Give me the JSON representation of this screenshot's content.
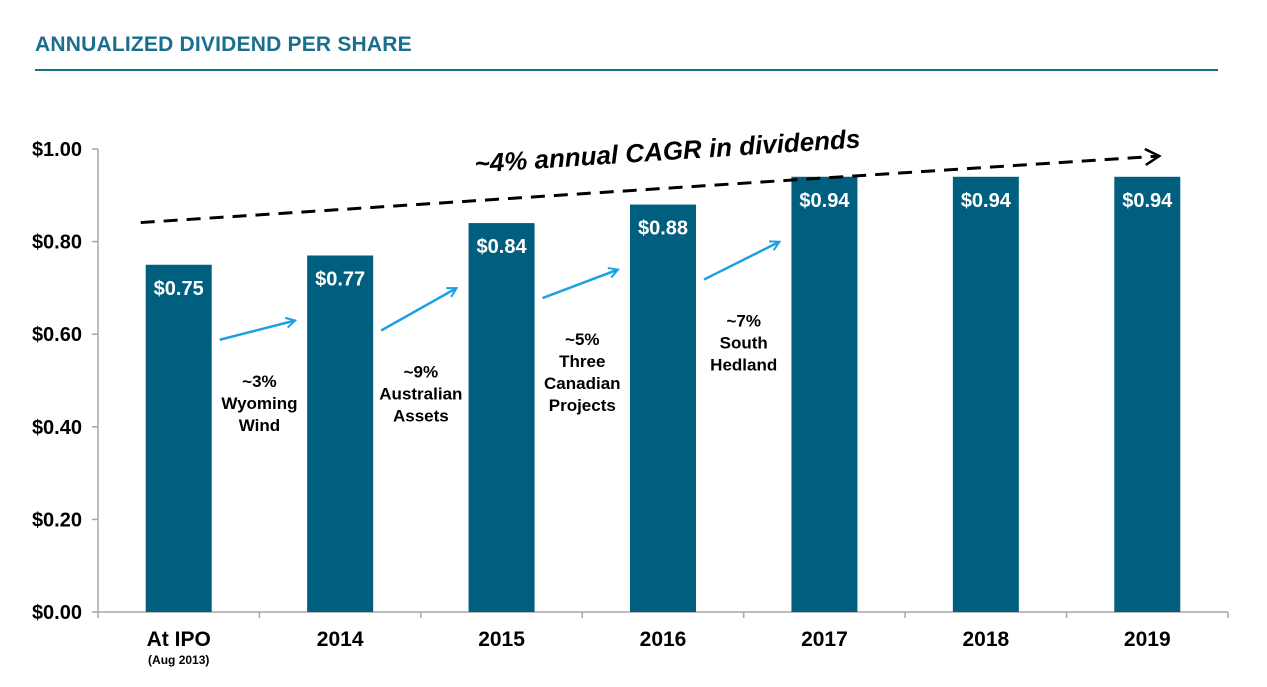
{
  "colors": {
    "title": "#1a6f8e",
    "rule": "#1a6f8e",
    "bar": "#005f7f",
    "axis": "#a6a6a6",
    "growth_arrow": "#1ba1e2",
    "trend_arrow": "#000000"
  },
  "chart_data": {
    "type": "bar",
    "title": "ANNUALIZED DIVIDEND PER SHARE",
    "xlabel": "",
    "ylabel": "",
    "ylim": [
      0,
      1.0
    ],
    "yticks": [
      "$0.00",
      "$0.20",
      "$0.40",
      "$0.60",
      "$0.80",
      "$1.00"
    ],
    "grid": false,
    "legend": "none",
    "categories": [
      {
        "label": "At IPO",
        "sublabel": "(Aug 2013)"
      },
      {
        "label": "2014",
        "sublabel": ""
      },
      {
        "label": "2015",
        "sublabel": ""
      },
      {
        "label": "2016",
        "sublabel": ""
      },
      {
        "label": "2017",
        "sublabel": ""
      },
      {
        "label": "2018",
        "sublabel": ""
      },
      {
        "label": "2019",
        "sublabel": ""
      }
    ],
    "values": [
      0.75,
      0.77,
      0.84,
      0.88,
      0.94,
      0.94,
      0.94
    ],
    "value_labels": [
      "$0.75",
      "$0.77",
      "$0.84",
      "$0.88",
      "$0.94",
      "$0.94",
      "$0.94"
    ],
    "annotations": {
      "trend": {
        "text": "~4% annual CAGR in dividends",
        "from": {
          "category": 0,
          "value": 0.88
        },
        "to": {
          "category": 6,
          "value": 1.015
        }
      },
      "growth_steps": [
        {
          "from_category": 0,
          "to_category": 1,
          "lines": [
            "~3%",
            "Wyoming",
            "Wind"
          ]
        },
        {
          "from_category": 1,
          "to_category": 2,
          "lines": [
            "~9%",
            "Australian",
            "Assets"
          ]
        },
        {
          "from_category": 2,
          "to_category": 3,
          "lines": [
            "~5%",
            "Three",
            "Canadian",
            "Projects"
          ]
        },
        {
          "from_category": 3,
          "to_category": 4,
          "lines": [
            "~7%",
            "South",
            "Hedland"
          ]
        }
      ]
    }
  }
}
